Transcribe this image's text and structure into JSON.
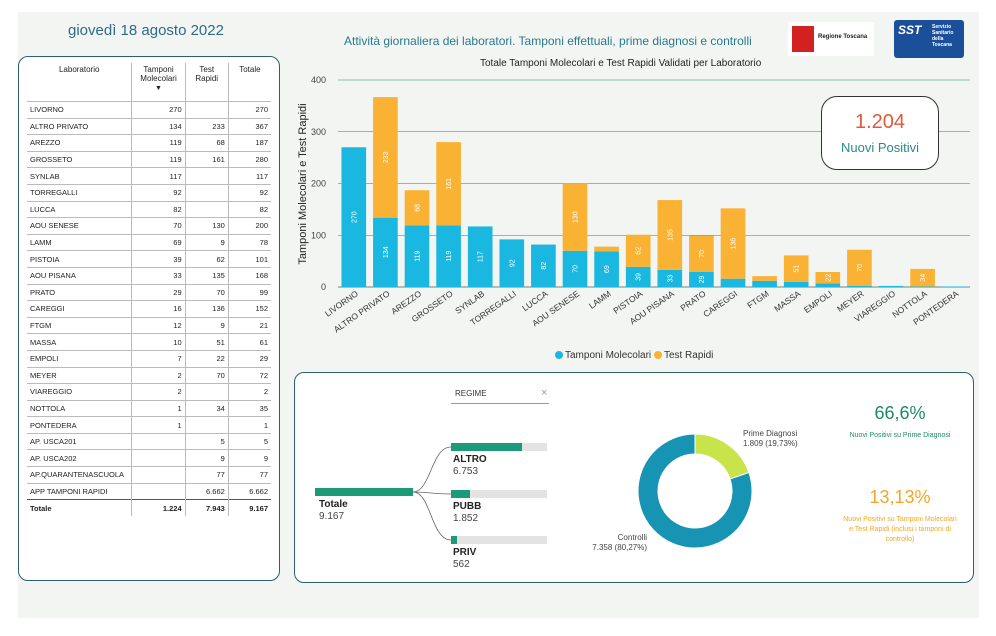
{
  "header": {
    "date": "giovedì 18 agosto 2022",
    "subtitle": "Attività giornaliera dei laboratori. Tamponi effettuali, prime diagnosi e controlli",
    "logo_regione": "Regione Toscana",
    "logo_sst": "SST",
    "logo_sst_lines": "Servizio Sanitario della Toscana"
  },
  "table": {
    "headers": [
      "Laboratorio",
      "Tamponi Molecolari",
      "Test Rapidi",
      "Totale"
    ],
    "sort_indicator": "▼",
    "rows": [
      [
        "LIVORNO",
        "270",
        "",
        "270"
      ],
      [
        "ALTRO PRIVATO",
        "134",
        "233",
        "367"
      ],
      [
        "AREZZO",
        "119",
        "68",
        "187"
      ],
      [
        "GROSSETO",
        "119",
        "161",
        "280"
      ],
      [
        "SYNLAB",
        "117",
        "",
        "117"
      ],
      [
        "TORREGALLI",
        "92",
        "",
        "92"
      ],
      [
        "LUCCA",
        "82",
        "",
        "82"
      ],
      [
        "AOU SENESE",
        "70",
        "130",
        "200"
      ],
      [
        "LAMM",
        "69",
        "9",
        "78"
      ],
      [
        "PISTOIA",
        "39",
        "62",
        "101"
      ],
      [
        "AOU PISANA",
        "33",
        "135",
        "168"
      ],
      [
        "PRATO",
        "29",
        "70",
        "99"
      ],
      [
        "CAREGGI",
        "16",
        "136",
        "152"
      ],
      [
        "FTGM",
        "12",
        "9",
        "21"
      ],
      [
        "MASSA",
        "10",
        "51",
        "61"
      ],
      [
        "EMPOLI",
        "7",
        "22",
        "29"
      ],
      [
        "MEYER",
        "2",
        "70",
        "72"
      ],
      [
        "VIAREGGIO",
        "2",
        "",
        "2"
      ],
      [
        "NOTTOLA",
        "1",
        "34",
        "35"
      ],
      [
        "PONTEDERA",
        "1",
        "",
        "1"
      ],
      [
        "AP. USCA201",
        "",
        "5",
        "5"
      ],
      [
        "AP. USCA202",
        "",
        "9",
        "9"
      ],
      [
        "AP.QUARANTENASCUOLA",
        "",
        "77",
        "77"
      ],
      [
        "APP TAMPONI RAPIDI",
        "",
        "6.662",
        "6.662"
      ]
    ],
    "total": [
      "Totale",
      "1.224",
      "7.943",
      "9.167"
    ]
  },
  "kpi": {
    "value": "1.204",
    "label": "Nuovi Positivi"
  },
  "chart_data": {
    "type": "bar",
    "stacked": true,
    "title": "Totale Tamponi Molecolari e Test Rapidi Validati per Laboratorio",
    "ylabel": "Tamponi Molecolari e Test Rapidi",
    "ylim": [
      0,
      400
    ],
    "yticks": [
      0,
      100,
      200,
      300,
      400
    ],
    "grid": true,
    "legend_position": "bottom-center",
    "categories": [
      "LIVORNO",
      "ALTRO PRIVATO",
      "AREZZO",
      "GROSSETO",
      "SYNLAB",
      "TORREGALLI",
      "LUCCA",
      "AOU SENESE",
      "LAMM",
      "PISTOIA",
      "AOU PISANA",
      "PRATO",
      "CAREGGI",
      "FTGM",
      "MASSA",
      "EMPOLI",
      "MEYER",
      "VIAREGGIO",
      "NOTTOLA",
      "PONTEDERA"
    ],
    "series": [
      {
        "name": "Tamponi Molecolari",
        "color": "#1ab8e0",
        "values": [
          270,
          134,
          119,
          119,
          117,
          92,
          82,
          70,
          69,
          39,
          33,
          29,
          16,
          12,
          10,
          7,
          2,
          2,
          1,
          1
        ]
      },
      {
        "name": "Test Rapidi",
        "color": "#f9b233",
        "values": [
          0,
          233,
          68,
          161,
          0,
          0,
          0,
          130,
          9,
          62,
          135,
          70,
          136,
          9,
          51,
          22,
          70,
          0,
          34,
          0
        ]
      }
    ]
  },
  "regime": {
    "title": "REGIME",
    "close": "×",
    "root_label": "Totale",
    "root_value": "9.167",
    "root_amount": 9167,
    "children": [
      {
        "label": "ALTRO",
        "value": "6.753",
        "amount": 6753
      },
      {
        "label": "PUBB",
        "value": "1.852",
        "amount": 1852
      },
      {
        "label": "PRIV",
        "value": "562",
        "amount": 562
      }
    ]
  },
  "donut": {
    "slices": [
      {
        "label": "Prime Diagnosi",
        "value": "1.809 (19,73%)",
        "amount": 1809,
        "color": "#c8e44a"
      },
      {
        "label": "Controlli",
        "value": "7.358 (80,27%)",
        "amount": 7358,
        "color": "#1794b4"
      }
    ]
  },
  "stats": {
    "pct1": "66,6%",
    "pct1_label": "Nuovi Positivi su Prime Diagnosi",
    "pct2": "13,13%",
    "pct2_label": "Nuovi Positivi su Tamponi Molecolari e Test Rapidi (inclusi i tamponi di controllo)"
  }
}
